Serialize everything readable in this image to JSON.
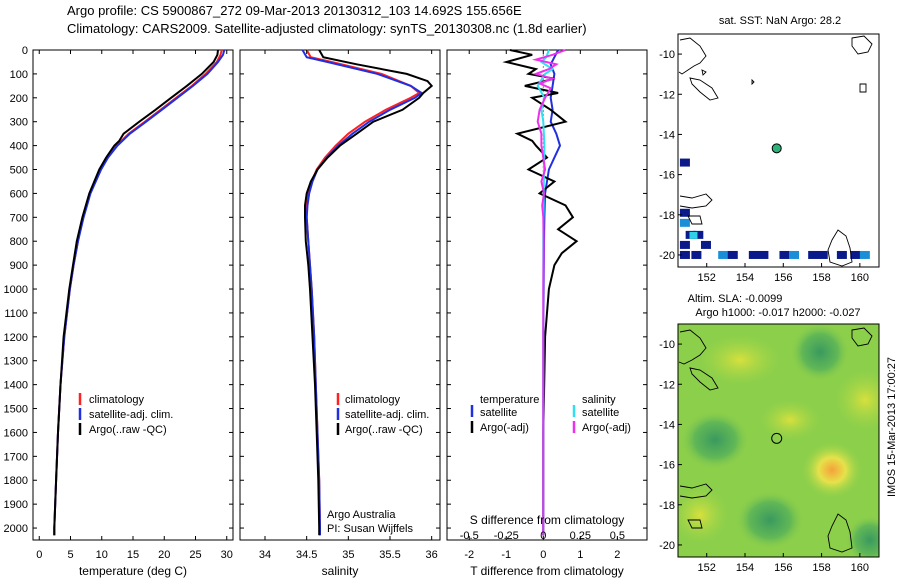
{
  "header": {
    "line1": "Argo profile: CS 5900867_272 09-Mar-2013 20130312_103 14.692S 155.656E",
    "line2": "Climatology: CARS2009. Satellite-adjusted climatology: synTS_20130308.nc (1.8d earlier)"
  },
  "colors": {
    "clim": "#ff2020",
    "sat": "#2030e0",
    "argo": "#000000",
    "sat_s": "#30e0f0",
    "argo_s": "#ee30ee"
  },
  "depth_axis": {
    "ylim": [
      0,
      2050
    ],
    "ticks": [
      "0",
      "100",
      "200",
      "300",
      "400",
      "500",
      "600",
      "700",
      "800",
      "900",
      "1000",
      "1100",
      "1200",
      "1300",
      "1400",
      "1500",
      "1600",
      "1700",
      "1800",
      "1900",
      "2000"
    ]
  },
  "legend": {
    "clim": "climatology",
    "sat": "satellite-adj. clim.",
    "argo": "Argo(..raw -QC)"
  },
  "legend3": {
    "t_head": "temperature",
    "s_head": "salinity",
    "t_sat": "satellite",
    "t_argo": "Argo(-adj)",
    "s_sat": "satellite",
    "s_argo": "Argo(-adj)"
  },
  "credit": {
    "line1": "Argo Australia",
    "line2": "PI: Susan Wijffels"
  },
  "map_titles": {
    "sst": "sat. SST: NaN Argo: 28.2",
    "sla1": "Altim. SLA: -0.0099",
    "sla2": "Argo h1000: -0.017 h2000: -0.027"
  },
  "map_axes": {
    "xlim": [
      150.5,
      161
    ],
    "ylim": [
      -20.6,
      -9
    ],
    "xticks": [
      "152",
      "154",
      "156",
      "158",
      "160"
    ],
    "yticks": [
      "-10",
      "-12",
      "-14",
      "-16",
      "-18",
      "-20"
    ]
  },
  "argo_position": {
    "lon": 155.656,
    "lat": -14.692
  },
  "stamp": "IMOS 15-Mar-2013 17:00:27",
  "chart_data": [
    {
      "type": "line",
      "xlabel": "temperature (deg C)",
      "xlim": [
        -1,
        31
      ],
      "xticks": [
        "0",
        "5",
        "10",
        "15",
        "20",
        "25",
        "30"
      ],
      "series": [
        {
          "name": "climatology",
          "color": "#ff2020",
          "depth": [
            0,
            20,
            50,
            100,
            150,
            200,
            250,
            300,
            350,
            400,
            450,
            500,
            600,
            700,
            800,
            900,
            1000,
            1200,
            1400,
            1600,
            1800,
            2000,
            2030
          ],
          "values": [
            29.2,
            29.0,
            28.4,
            26.6,
            24.4,
            21.9,
            19.4,
            16.9,
            14.3,
            12.4,
            10.9,
            9.8,
            8.1,
            7.0,
            6.2,
            5.5,
            4.9,
            4.0,
            3.4,
            3.0,
            2.7,
            2.4,
            2.4
          ]
        },
        {
          "name": "satellite-adj. clim.",
          "color": "#2030e0",
          "depth": [
            0,
            20,
            50,
            100,
            150,
            200,
            250,
            300,
            350,
            400,
            450,
            500,
            600,
            700,
            800,
            900,
            1000,
            1200,
            1400,
            1600,
            1800,
            2000,
            2030
          ],
          "values": [
            29.6,
            29.4,
            28.6,
            26.9,
            24.6,
            22.1,
            19.6,
            17.1,
            14.5,
            12.5,
            11.0,
            9.9,
            8.2,
            7.1,
            6.2,
            5.5,
            4.9,
            4.0,
            3.4,
            3.0,
            2.7,
            2.4,
            2.4
          ]
        },
        {
          "name": "Argo(..raw -QC)",
          "color": "#000000",
          "depth": [
            0,
            20,
            50,
            100,
            150,
            200,
            250,
            300,
            350,
            380,
            400,
            450,
            500,
            600,
            700,
            800,
            900,
            1000,
            1200,
            1400,
            1600,
            1800,
            2000,
            2030
          ],
          "values": [
            28.6,
            28.5,
            27.9,
            26.0,
            23.6,
            21.1,
            18.6,
            16.0,
            13.5,
            12.8,
            12.0,
            10.7,
            9.6,
            8.0,
            6.9,
            6.0,
            5.4,
            4.8,
            3.9,
            3.4,
            3.0,
            2.7,
            2.4,
            2.4
          ]
        }
      ]
    },
    {
      "type": "line",
      "xlabel": "salinity",
      "xlim": [
        33.7,
        36.1
      ],
      "xticks": [
        "34",
        "34.5",
        "35",
        "35.5",
        "36"
      ],
      "series": [
        {
          "name": "climatology",
          "color": "#ff2020",
          "depth": [
            0,
            30,
            50,
            100,
            150,
            180,
            200,
            250,
            300,
            350,
            400,
            450,
            500,
            550,
            600,
            650,
            700,
            800,
            900,
            1000,
            1200,
            1400,
            1600,
            1800,
            2000,
            2030
          ],
          "values": [
            34.5,
            34.55,
            34.8,
            35.4,
            35.75,
            35.85,
            35.75,
            35.45,
            35.2,
            35.0,
            34.85,
            34.72,
            34.62,
            34.56,
            34.52,
            34.5,
            34.5,
            34.52,
            34.54,
            34.56,
            34.59,
            34.61,
            34.63,
            34.65,
            34.66,
            34.66
          ]
        },
        {
          "name": "satellite-adj. clim.",
          "color": "#2030e0",
          "depth": [
            0,
            30,
            50,
            100,
            150,
            180,
            200,
            250,
            300,
            350,
            400,
            450,
            500,
            550,
            600,
            650,
            700,
            800,
            900,
            1000,
            1200,
            1400,
            1600,
            1800,
            2000,
            2030
          ],
          "values": [
            34.45,
            34.5,
            34.75,
            35.35,
            35.75,
            35.88,
            35.8,
            35.5,
            35.25,
            35.05,
            34.88,
            34.74,
            34.63,
            34.57,
            34.53,
            34.51,
            34.5,
            34.52,
            34.54,
            34.56,
            34.59,
            34.61,
            34.63,
            34.65,
            34.66,
            34.66
          ]
        },
        {
          "name": "Argo(..raw -QC)",
          "color": "#000000",
          "depth": [
            0,
            30,
            60,
            100,
            130,
            150,
            180,
            200,
            250,
            300,
            350,
            400,
            450,
            500,
            550,
            600,
            650,
            700,
            800,
            900,
            1000,
            1200,
            1400,
            1600,
            1800,
            2000,
            2030
          ],
          "values": [
            34.65,
            34.7,
            35.1,
            35.7,
            35.95,
            36.0,
            35.9,
            35.85,
            35.65,
            35.3,
            35.1,
            34.9,
            34.75,
            34.63,
            34.55,
            34.5,
            34.48,
            34.48,
            34.49,
            34.52,
            34.54,
            34.57,
            34.6,
            34.62,
            34.64,
            34.65,
            34.65
          ]
        }
      ]
    },
    {
      "type": "line",
      "xlabel": "T difference from climatology",
      "xlabel2": "S difference from climatology",
      "xlim": [
        -2.6,
        2.8
      ],
      "xticks": [
        "-2",
        "-1",
        "0",
        "1",
        "2"
      ],
      "xticks2": [
        "-0.5",
        "-0.25",
        "0",
        "0.25",
        "0.5"
      ],
      "series": [
        {
          "name": "temperature satellite",
          "color": "#2030e0",
          "depth": [
            0,
            30,
            60,
            100,
            150,
            200,
            250,
            300,
            350,
            400,
            450,
            500,
            550,
            600,
            700,
            800,
            1000,
            1200,
            1600,
            2000,
            2030
          ],
          "values": [
            0.4,
            0.3,
            0.2,
            0.3,
            0.25,
            0.2,
            0.25,
            0.2,
            0.35,
            0.45,
            0.3,
            0.15,
            0.1,
            0.05,
            0.03,
            0.02,
            0.01,
            0.0,
            0.0,
            0.0,
            0.0
          ]
        },
        {
          "name": "temperature Argo(-adj)",
          "color": "#000000",
          "depth": [
            0,
            20,
            50,
            80,
            100,
            120,
            150,
            180,
            200,
            250,
            300,
            350,
            380,
            400,
            450,
            500,
            550,
            600,
            650,
            700,
            750,
            800,
            850,
            900,
            1000,
            1200,
            1600,
            2000,
            2030
          ],
          "values": [
            -0.9,
            -0.3,
            -1.0,
            -0.2,
            -0.4,
            0.3,
            -0.5,
            0.4,
            -0.3,
            0.2,
            0.6,
            -0.7,
            -0.3,
            -0.2,
            0.1,
            -0.4,
            0.3,
            -0.1,
            0.6,
            0.8,
            0.4,
            0.9,
            0.5,
            0.3,
            0.15,
            0.05,
            0.0,
            0.0,
            0.0
          ]
        },
        {
          "name": "salinity satellite",
          "color": "#30e0f0",
          "depth": [
            0,
            30,
            50,
            80,
            100,
            150,
            200,
            250,
            300,
            400,
            500,
            600,
            800,
            1000,
            1200,
            1600,
            2000,
            2030
          ],
          "values": [
            0.15,
            0.08,
            -0.05,
            0.25,
            0.05,
            -0.15,
            0.03,
            -0.05,
            0.0,
            0.03,
            0.02,
            0.01,
            0.0,
            0.0,
            0.0,
            0.0,
            0.0,
            0.0
          ]
        },
        {
          "name": "salinity Argo(-adj)",
          "color": "#ee30ee",
          "depth": [
            0,
            20,
            40,
            60,
            80,
            100,
            120,
            140,
            160,
            200,
            250,
            300,
            350,
            400,
            450,
            500,
            550,
            600,
            650,
            700,
            800,
            1000,
            1200,
            1600,
            2000,
            2030
          ],
          "values": [
            0.6,
            0.25,
            -0.2,
            0.35,
            0.15,
            -0.2,
            0.25,
            -0.1,
            0.2,
            0.05,
            -0.1,
            -0.15,
            -0.05,
            -0.05,
            0.0,
            0.05,
            -0.05,
            0.02,
            -0.03,
            0.0,
            0.01,
            0.0,
            0.0,
            0.0,
            0.0,
            0.0
          ]
        }
      ]
    }
  ],
  "sla_map": {
    "hot_spots": [
      {
        "lon": 157.2,
        "lat": -16.5,
        "value": "high"
      },
      {
        "lon": 155.0,
        "lat": -19.0,
        "value": "low"
      },
      {
        "lon": 152.0,
        "lat": -14.3,
        "value": "low"
      }
    ]
  },
  "sst_cells": [
    [
      150.6,
      -15.6
    ],
    [
      150.6,
      -18.1
    ],
    [
      150.6,
      -18.6
    ],
    [
      150.9,
      -19.2
    ],
    [
      151.3,
      -19.2
    ],
    [
      150.6,
      -19.7
    ],
    [
      151.7,
      -19.7
    ],
    [
      152.6,
      -20.2
    ],
    [
      153.1,
      -20.2
    ],
    [
      154.2,
      -20.2
    ],
    [
      154.7,
      -20.2
    ],
    [
      155.8,
      -20.2
    ],
    [
      156.3,
      -20.2
    ],
    [
      157.3,
      -20.2
    ],
    [
      157.8,
      -20.2
    ],
    [
      158.8,
      -20.2
    ],
    [
      159.5,
      -20.2
    ],
    [
      160.0,
      -20.2
    ],
    [
      150.6,
      -20.2
    ],
    [
      151.2,
      -20.2
    ]
  ]
}
